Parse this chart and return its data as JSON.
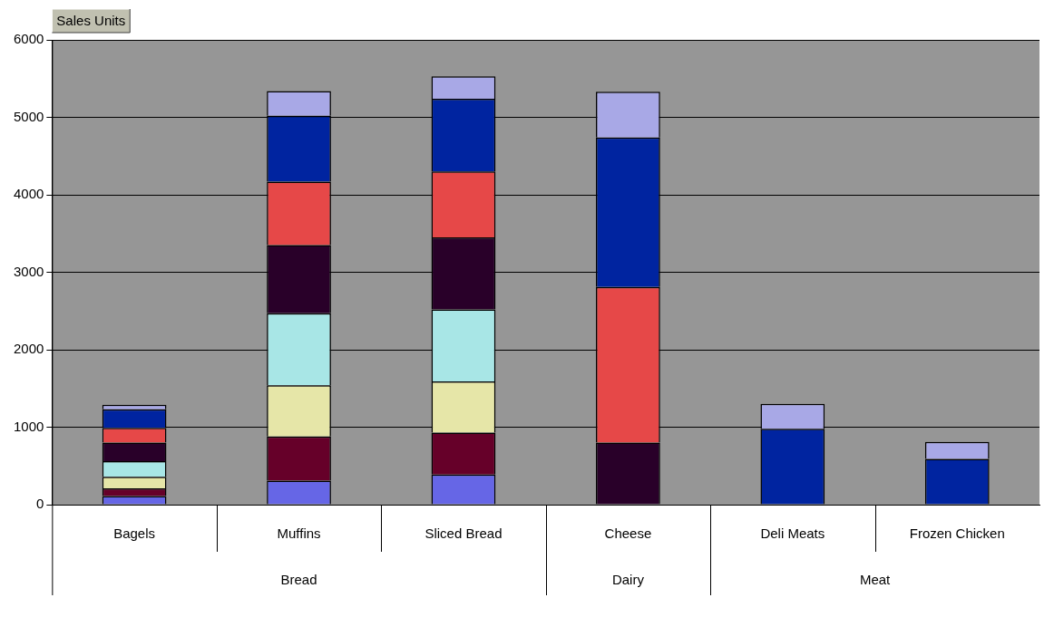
{
  "chart_data": {
    "type": "bar",
    "stacked": true,
    "categories": [
      "Bagels",
      "Muffins",
      "Sliced Bread",
      "Cheese",
      "Deli Meats",
      "Frozen Chicken"
    ],
    "series": [
      {
        "color": "#6666e6",
        "values": [
          110,
          310,
          390,
          null,
          null,
          null
        ]
      },
      {
        "color": "#660029",
        "values": [
          100,
          570,
          540,
          null,
          null,
          null
        ]
      },
      {
        "color": "#e6e6a8",
        "values": [
          150,
          660,
          660,
          null,
          null,
          null
        ]
      },
      {
        "color": "#a8e6e6",
        "values": [
          200,
          930,
          930,
          null,
          null,
          null
        ]
      },
      {
        "color": "#290029",
        "values": [
          240,
          880,
          930,
          800,
          null,
          null
        ]
      },
      {
        "color": "#e64848",
        "values": [
          190,
          820,
          850,
          2010,
          null,
          null
        ]
      },
      {
        "color": "#0024a0",
        "values": [
          240,
          850,
          940,
          1930,
          980,
          590
        ]
      },
      {
        "color": "#a8a8e6",
        "values": [
          60,
          320,
          290,
          590,
          320,
          220
        ]
      }
    ],
    "ylim": [
      0,
      6000
    ],
    "yticks": [
      0,
      1000,
      2000,
      3000,
      4000,
      5000,
      6000
    ],
    "grid": "y",
    "legend": false,
    "annotations": [
      "Sales Units",
      "Bread",
      "Dairy",
      "Meat"
    ]
  }
}
